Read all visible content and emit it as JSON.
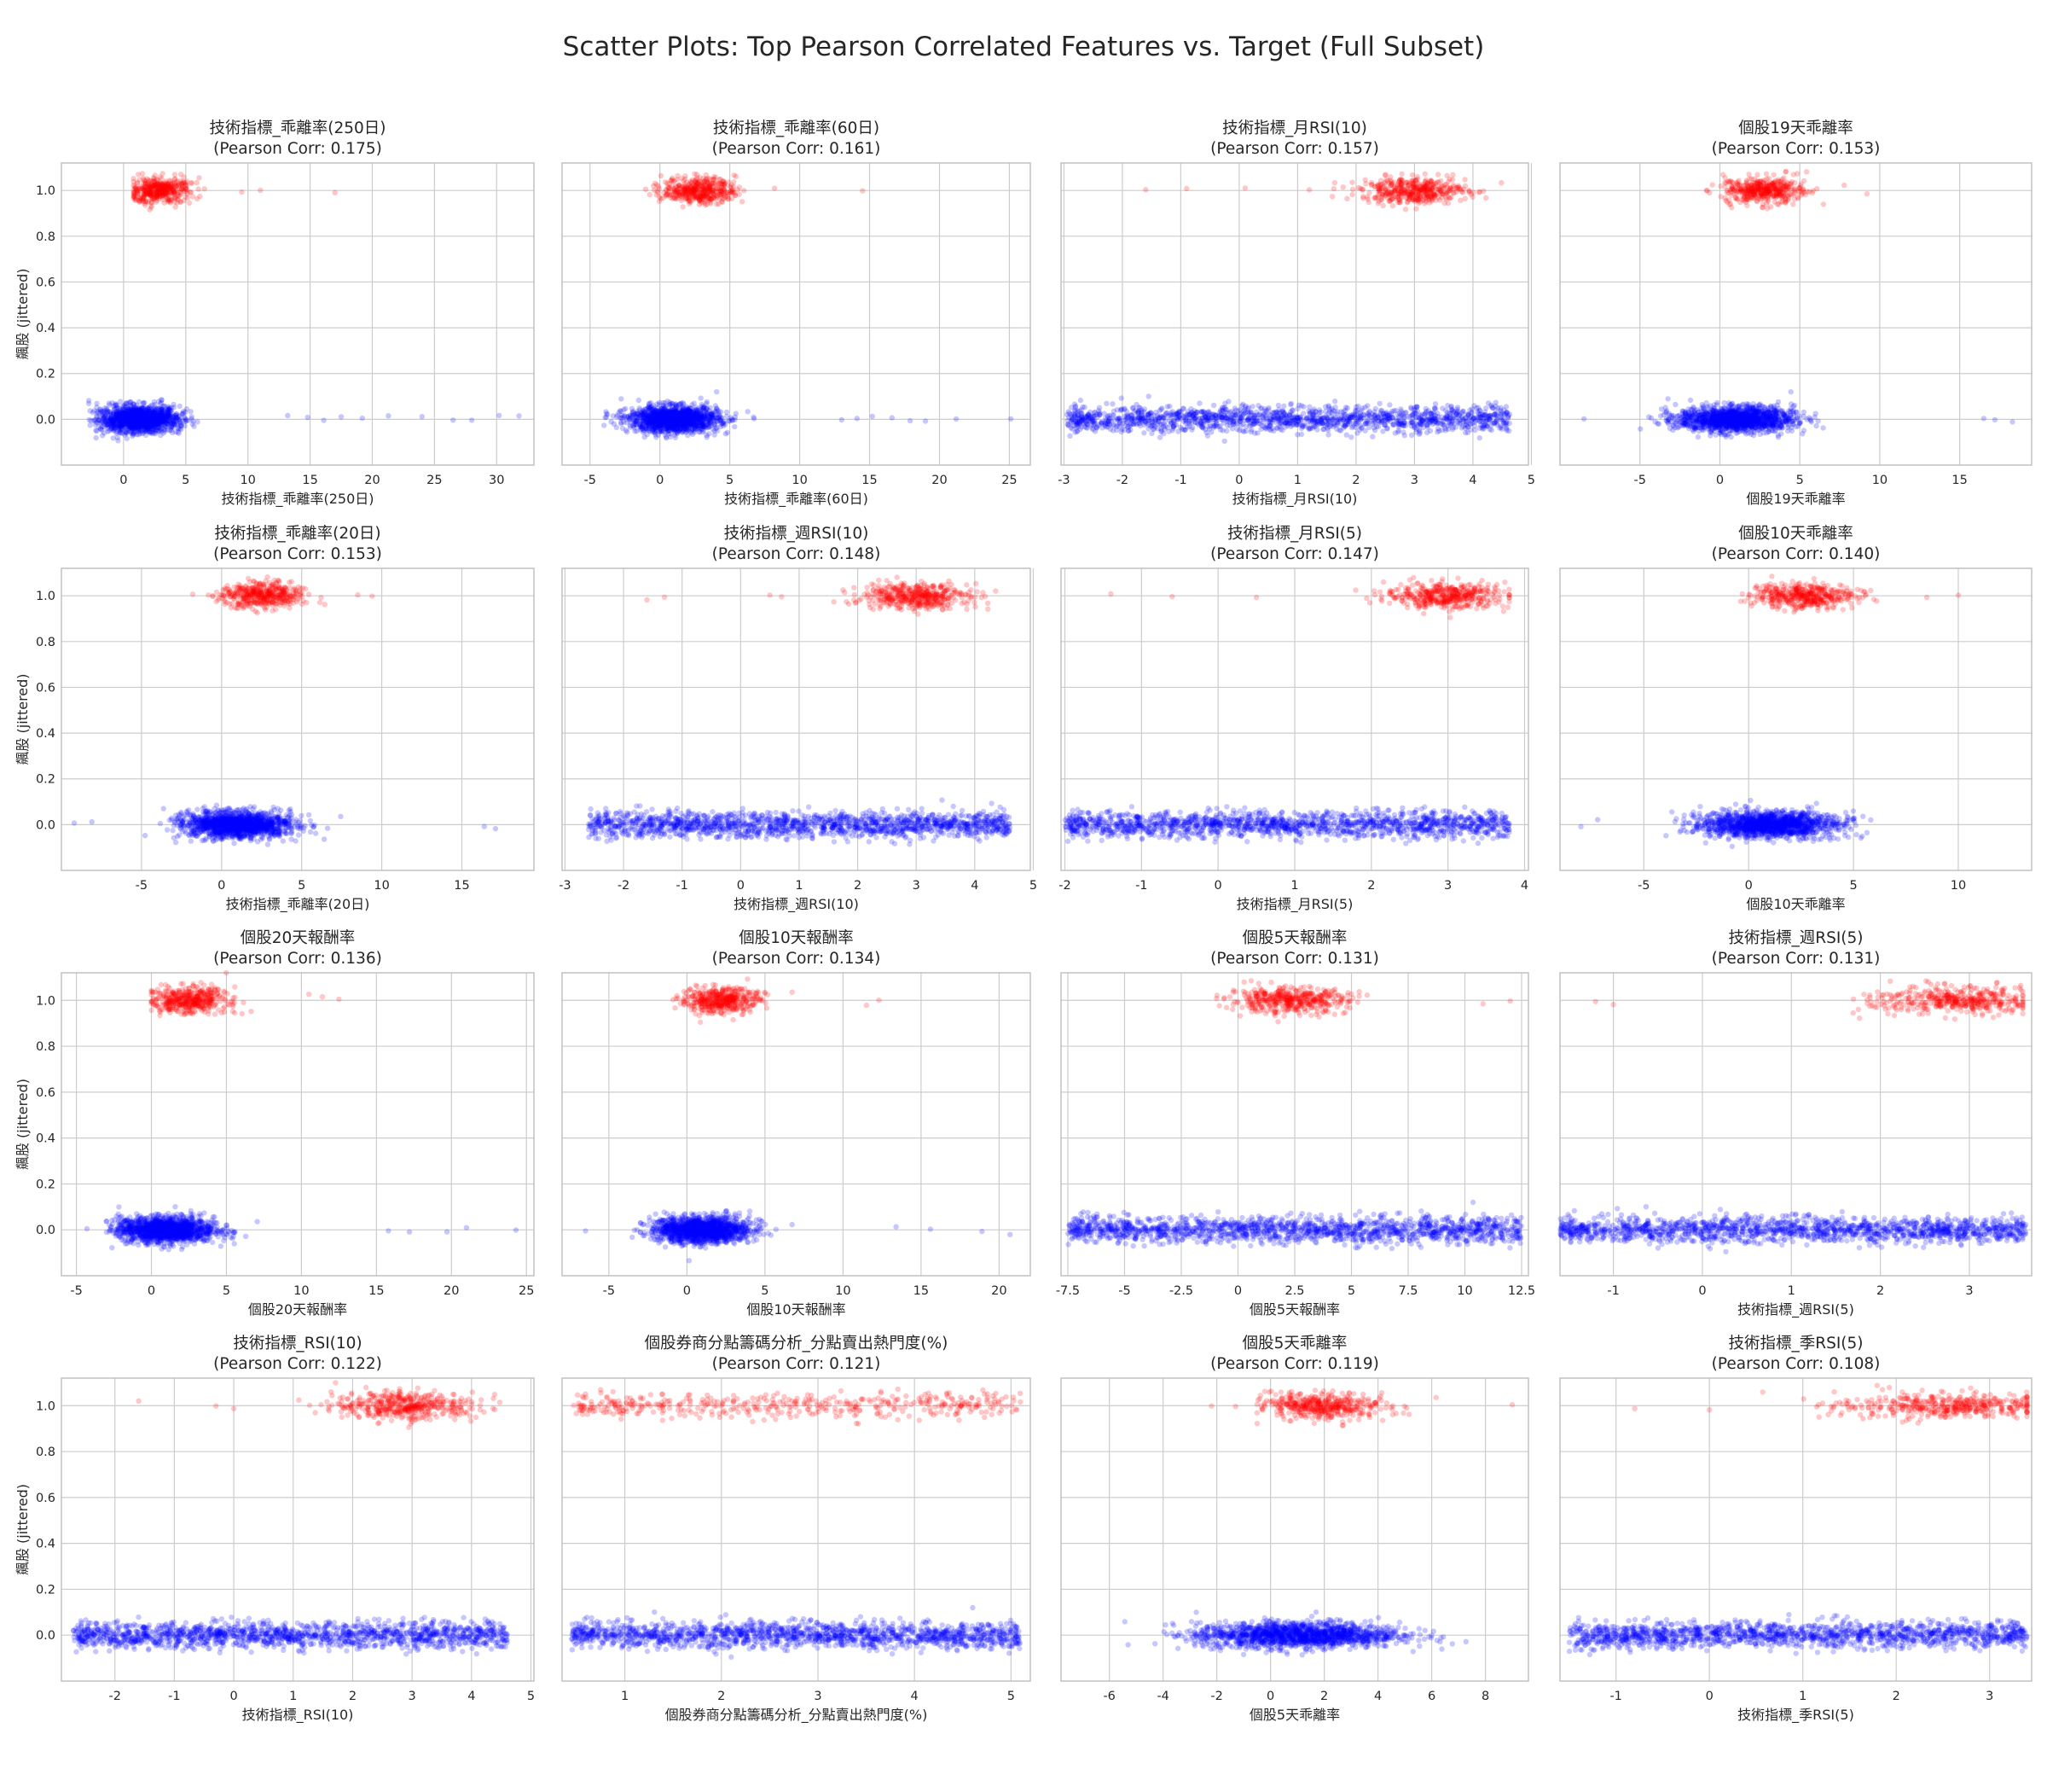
{
  "figure_title": "Scatter Plots: Top Pearson Correlated Features vs. Target (Full Subset)",
  "ylabel": "飆股 (jittered)",
  "colors": {
    "negative": "#0000ff",
    "positive": "#ff0000",
    "grid": "#cccccc",
    "text": "#262626"
  },
  "chart_data": [
    {
      "type": "scatter",
      "title": "技術指標_乖離率(250日)",
      "corr_label": "(Pearson Corr: 0.175)",
      "xlabel": "技術指標_乖離率(250日)",
      "xlim": [
        -5,
        33
      ],
      "ylim": [
        -0.2,
        1.12
      ],
      "xticks": [
        0,
        5,
        10,
        15,
        20,
        25,
        30
      ],
      "yticks": [
        0.0,
        0.2,
        0.4,
        0.6,
        0.8,
        1.0
      ],
      "neg": {
        "y": 0,
        "min": -2.8,
        "max": 12,
        "center": 1.2,
        "spread": 1.6,
        "outliers": [
          13.2,
          14.8,
          16.1,
          17.5,
          19.2,
          21.3,
          24,
          26.5,
          28,
          30.2,
          31.8
        ]
      },
      "pos": {
        "y": 1,
        "min": 0.8,
        "max": 10,
        "center": 2.8,
        "spread": 1.3,
        "outliers": [
          11,
          17,
          9.5,
          6.5
        ]
      }
    },
    {
      "type": "scatter",
      "title": "技術指標_乖離率(60日)",
      "corr_label": "(Pearson Corr: 0.161)",
      "xlabel": "技術指標_乖離率(60日)",
      "xlim": [
        -7,
        26.5
      ],
      "ylim": [
        -0.2,
        1.12
      ],
      "xticks": [
        -5,
        0,
        5,
        10,
        15,
        20,
        25
      ],
      "yticks": [
        0.0,
        0.2,
        0.4,
        0.6,
        0.8,
        1.0
      ],
      "neg": {
        "y": 0,
        "min": -5,
        "max": 12,
        "center": 1.0,
        "spread": 1.6,
        "outliers": [
          13,
          14.1,
          15.2,
          16.6,
          17.9,
          19,
          21.2,
          25.1
        ]
      },
      "pos": {
        "y": 1,
        "min": -1.2,
        "max": 9,
        "center": 2.8,
        "spread": 1.3,
        "outliers": [
          14.5,
          8.2,
          -0.4
        ]
      }
    },
    {
      "type": "scatter",
      "title": "技術指標_月RSI(10)",
      "corr_label": "(Pearson Corr: 0.157)",
      "xlabel": "技術指標_月RSI(10)",
      "xlim": [
        -3.05,
        4.95
      ],
      "ylim": [
        -0.2,
        1.12
      ],
      "xticks": [
        -3,
        -2,
        -1,
        0,
        1,
        2,
        3,
        4,
        5
      ],
      "yticks": [
        0.0,
        0.2,
        0.4,
        0.6,
        0.8,
        1.0
      ],
      "neg": {
        "y": 0,
        "min": -2.95,
        "max": 4.65,
        "center": 1.0,
        "spread": 2.3,
        "outliers": []
      },
      "pos": {
        "y": 1,
        "min": 1.5,
        "max": 4.5,
        "center": 3.0,
        "spread": 0.45,
        "outliers": [
          -1.6,
          0.1,
          -0.9,
          1.2
        ]
      }
    },
    {
      "type": "scatter",
      "title": "個股19天乖離率",
      "corr_label": "(Pearson Corr: 0.153)",
      "xlabel": "個股19天乖離率",
      "xlim": [
        -10,
        19.5
      ],
      "ylim": [
        -0.2,
        1.12
      ],
      "xticks": [
        -5,
        0,
        5,
        10,
        15
      ],
      "yticks": [
        0.0,
        0.2,
        0.4,
        0.6,
        0.8,
        1.0
      ],
      "neg": {
        "y": 0,
        "min": -6,
        "max": 15.5,
        "center": 1.0,
        "spread": 1.8,
        "outliers": [
          -8.5,
          16.5,
          18.3,
          17.2
        ]
      },
      "pos": {
        "y": 1,
        "min": -1.5,
        "max": 9,
        "center": 2.8,
        "spread": 1.3,
        "outliers": [
          -0.8,
          9.2
        ]
      }
    },
    {
      "type": "scatter",
      "title": "技術指標_乖離率(20日)",
      "corr_label": "(Pearson Corr: 0.153)",
      "xlabel": "技術指標_乖離率(20日)",
      "xlim": [
        -10,
        19.5
      ],
      "ylim": [
        -0.2,
        1.12
      ],
      "xticks": [
        -5,
        0,
        5,
        10,
        15
      ],
      "yticks": [
        0.0,
        0.2,
        0.4,
        0.6,
        0.8,
        1.0
      ],
      "neg": {
        "y": 0,
        "min": -6,
        "max": 15.5,
        "center": 1.0,
        "spread": 1.7,
        "outliers": [
          -9.2,
          -8.1,
          16.4,
          17.1
        ]
      },
      "pos": {
        "y": 1,
        "min": -1.2,
        "max": 8,
        "center": 2.5,
        "spread": 1.3,
        "outliers": [
          -1.8,
          8.5,
          9.4
        ]
      }
    },
    {
      "type": "scatter",
      "title": "技術指標_週RSI(10)",
      "corr_label": "(Pearson Corr: 0.148)",
      "xlabel": "技術指標_週RSI(10)",
      "xlim": [
        -3.05,
        4.95
      ],
      "ylim": [
        -0.2,
        1.12
      ],
      "xticks": [
        -3,
        -2,
        -1,
        0,
        1,
        2,
        3,
        4,
        5
      ],
      "yticks": [
        0.0,
        0.2,
        0.4,
        0.6,
        0.8,
        1.0
      ],
      "neg": {
        "y": 0,
        "min": -2.6,
        "max": 4.6,
        "center": 1.0,
        "spread": 2.3,
        "outliers": []
      },
      "pos": {
        "y": 1,
        "min": 1.3,
        "max": 4.4,
        "center": 3.0,
        "spread": 0.45,
        "outliers": [
          -1.6,
          -1.3,
          0.5,
          0.7
        ]
      }
    },
    {
      "type": "scatter",
      "title": "技術指標_月RSI(5)",
      "corr_label": "(Pearson Corr: 0.147)",
      "xlabel": "技術指標_月RSI(5)",
      "xlim": [
        -2.05,
        4.05
      ],
      "ylim": [
        -0.2,
        1.12
      ],
      "xticks": [
        -2,
        -1,
        0,
        1,
        2,
        3,
        4
      ],
      "yticks": [
        0.0,
        0.2,
        0.4,
        0.6,
        0.8,
        1.0
      ],
      "neg": {
        "y": 0,
        "min": -2.0,
        "max": 3.8,
        "center": 1.0,
        "spread": 2.3,
        "outliers": []
      },
      "pos": {
        "y": 1,
        "min": 1.2,
        "max": 3.8,
        "center": 3.0,
        "spread": 0.4,
        "outliers": [
          -1.4,
          -0.6,
          0.5
        ]
      }
    },
    {
      "type": "scatter",
      "title": "個股10天乖離率",
      "corr_label": "(Pearson Corr: 0.140)",
      "xlabel": "個股10天乖離率",
      "xlim": [
        -9,
        13.5
      ],
      "ylim": [
        -0.2,
        1.12
      ],
      "xticks": [
        -5,
        0,
        5,
        10
      ],
      "yticks": [
        0.0,
        0.2,
        0.4,
        0.6,
        0.8,
        1.0
      ],
      "neg": {
        "y": 0,
        "min": -5,
        "max": 13,
        "center": 1.0,
        "spread": 1.6,
        "outliers": [
          -8,
          -7.2
        ]
      },
      "pos": {
        "y": 1,
        "min": -0.5,
        "max": 8,
        "center": 2.6,
        "spread": 1.2,
        "outliers": [
          5.6,
          8.5,
          10
        ]
      }
    },
    {
      "type": "scatter",
      "title": "個股20天報酬率",
      "corr_label": "(Pearson Corr: 0.136)",
      "xlabel": "個股20天報酬率",
      "xlim": [
        -6,
        25.5
      ],
      "ylim": [
        -0.2,
        1.12
      ],
      "xticks": [
        -5,
        0,
        5,
        10,
        15,
        20,
        25
      ],
      "yticks": [
        0.0,
        0.2,
        0.4,
        0.6,
        0.8,
        1.0
      ],
      "neg": {
        "y": 0,
        "min": -3,
        "max": 14,
        "center": 1.0,
        "spread": 1.6,
        "outliers": [
          -4.3,
          15.8,
          17.2,
          19.7,
          21,
          24.3
        ]
      },
      "pos": {
        "y": 1,
        "min": 0,
        "max": 9,
        "center": 2.5,
        "spread": 1.3,
        "outliers": [
          10.5,
          11.4,
          12.5
        ]
      }
    },
    {
      "type": "scatter",
      "title": "個股10天報酬率",
      "corr_label": "(Pearson Corr: 0.134)",
      "xlabel": "個股10天報酬率",
      "xlim": [
        -8,
        22
      ],
      "ylim": [
        -0.2,
        1.12
      ],
      "xticks": [
        -5,
        0,
        5,
        10,
        15,
        20
      ],
      "yticks": [
        0.0,
        0.2,
        0.4,
        0.6,
        0.8,
        1.0
      ],
      "neg": {
        "y": 0,
        "min": -4,
        "max": 12,
        "center": 1.0,
        "spread": 1.5,
        "outliers": [
          -6.5,
          13.4,
          15.6,
          18.9,
          20.7
        ]
      },
      "pos": {
        "y": 1,
        "min": -1,
        "max": 10,
        "center": 2.2,
        "spread": 1.2,
        "outliers": [
          -0.2,
          11.5,
          12.3
        ]
      }
    },
    {
      "type": "scatter",
      "title": "個股5天報酬率",
      "corr_label": "(Pearson Corr: 0.131)",
      "xlabel": "個股5天報酬率",
      "xlim": [
        -7.8,
        12.8
      ],
      "ylim": [
        -0.2,
        1.12
      ],
      "xticks": [
        -7.5,
        -5.0,
        -2.5,
        0.0,
        2.5,
        5.0,
        7.5,
        10.0,
        12.5
      ],
      "yticks": [
        0.0,
        0.2,
        0.4,
        0.6,
        0.8,
        1.0
      ],
      "neg": {
        "y": 0,
        "min": -7.5,
        "max": 12.5,
        "center": 1.0,
        "spread": 2.0,
        "outliers": []
      },
      "pos": {
        "y": 1,
        "min": -1,
        "max": 11,
        "center": 2.2,
        "spread": 1.3,
        "outliers": [
          -0.6,
          10.8,
          12
        ]
      }
    },
    {
      "type": "scatter",
      "title": "技術指標_週RSI(5)",
      "corr_label": "(Pearson Corr: 0.131)",
      "xlabel": "技術指標_週RSI(5)",
      "xlim": [
        -1.6,
        3.7
      ],
      "ylim": [
        -0.2,
        1.12
      ],
      "xticks": [
        -1,
        0,
        1,
        2,
        3
      ],
      "yticks": [
        0.0,
        0.2,
        0.4,
        0.6,
        0.8,
        1.0
      ],
      "neg": {
        "y": 0,
        "min": -1.6,
        "max": 3.65,
        "center": 1.0,
        "spread": 2.2,
        "outliers": []
      },
      "pos": {
        "y": 1,
        "min": 0.3,
        "max": 3.6,
        "center": 2.9,
        "spread": 0.5,
        "outliers": [
          -1.2,
          -1.0
        ]
      }
    },
    {
      "type": "scatter",
      "title": "技術指標_RSI(10)",
      "corr_label": "(Pearson Corr: 0.122)",
      "xlabel": "技術指標_RSI(10)",
      "xlim": [
        -2.9,
        5.05
      ],
      "ylim": [
        -0.2,
        1.12
      ],
      "xticks": [
        -2,
        -1,
        0,
        1,
        2,
        3,
        4,
        5
      ],
      "yticks": [
        0.0,
        0.2,
        0.4,
        0.6,
        0.8,
        1.0
      ],
      "neg": {
        "y": 0,
        "min": -2.7,
        "max": 4.6,
        "center": 1.2,
        "spread": 2.3,
        "outliers": []
      },
      "pos": {
        "y": 1,
        "min": 0.5,
        "max": 4.5,
        "center": 2.9,
        "spread": 0.6,
        "outliers": [
          -1.6,
          -0.3,
          0.0
        ]
      }
    },
    {
      "type": "scatter",
      "title": "個股券商分點籌碼分析_分點賣出熱門度(%)",
      "corr_label": "(Pearson Corr: 0.121)",
      "xlabel": "個股券商分點籌碼分析_分點賣出熱門度(%)",
      "xlim": [
        0.35,
        5.2
      ],
      "ylim": [
        -0.2,
        1.12
      ],
      "xticks": [
        1,
        2,
        3,
        4,
        5
      ],
      "yticks": [
        0.0,
        0.2,
        0.4,
        0.6,
        0.8,
        1.0
      ],
      "neg": {
        "y": 0,
        "min": 0.45,
        "max": 5.1,
        "center": 2.7,
        "spread": 9,
        "outliers": []
      },
      "pos": {
        "y": 1,
        "min": 0.45,
        "max": 5.1,
        "center": 2.7,
        "spread": 9,
        "outliers": []
      }
    },
    {
      "type": "scatter",
      "title": "個股5天乖離率",
      "corr_label": "(Pearson Corr: 0.119)",
      "xlabel": "個股5天乖離率",
      "xlim": [
        -7.8,
        9.6
      ],
      "ylim": [
        -0.2,
        1.12
      ],
      "xticks": [
        -6,
        -4,
        -2,
        0,
        2,
        4,
        6,
        8
      ],
      "yticks": [
        0.0,
        0.2,
        0.4,
        0.6,
        0.8,
        1.0
      ],
      "neg": {
        "y": 0,
        "min": -7,
        "max": 9,
        "center": 1.0,
        "spread": 1.9,
        "outliers": []
      },
      "pos": {
        "y": 1,
        "min": -0.5,
        "max": 7.5,
        "center": 2.0,
        "spread": 1.1,
        "outliers": [
          -2.2,
          -1.3,
          9
        ]
      }
    },
    {
      "type": "scatter",
      "title": "技術指標_季RSI(5)",
      "corr_label": "(Pearson Corr: 0.108)",
      "xlabel": "技術指標_季RSI(5)",
      "xlim": [
        -1.6,
        3.45
      ],
      "ylim": [
        -0.2,
        1.12
      ],
      "xticks": [
        -1,
        0,
        1,
        2,
        3
      ],
      "yticks": [
        0.0,
        0.2,
        0.4,
        0.6,
        0.8,
        1.0
      ],
      "neg": {
        "y": 0,
        "min": -1.5,
        "max": 3.4,
        "center": 1.0,
        "spread": 2.2,
        "outliers": []
      },
      "pos": {
        "y": 1,
        "min": 0.5,
        "max": 3.4,
        "center": 2.6,
        "spread": 0.6,
        "outliers": [
          -0.8,
          0.0
        ]
      }
    }
  ]
}
